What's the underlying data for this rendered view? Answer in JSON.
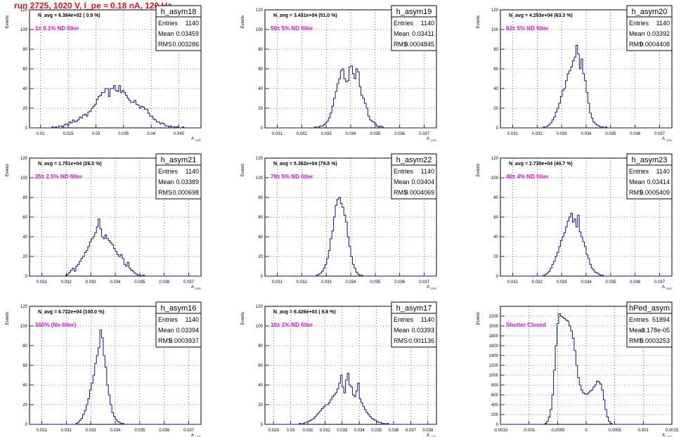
{
  "run_title": "run 2725,  1020 V, I_pe ≈ 0.18 nA, 120 Hz",
  "colors": {
    "run_title": "#e8101a",
    "annotation": "#e010d0",
    "histogram": "#101080",
    "grid": "#000000"
  },
  "stats_labels": {
    "entries": "Entries",
    "mean": "Mean",
    "rms": "RMS"
  },
  "ylabel": "Events",
  "xlabel": "A",
  "xlabel_sub": "LED",
  "chart_data": [
    {
      "type": "bar",
      "name": "h_asym18",
      "stats": {
        "entries": "1140",
        "mean": "0.03459",
        "rms": "0.003286"
      },
      "navg": "N_avg = 6.384e+02 ( 0.9 %)",
      "label": "1± 0.1% ND filter",
      "xlim": [
        0.018,
        0.049
      ],
      "ylim": [
        0,
        120
      ],
      "xticks": [
        "0.02",
        "0.025",
        "0.03",
        "0.035",
        "0.04",
        "0.045"
      ],
      "yticks": [
        "0",
        "20",
        "40",
        "60",
        "80",
        "100",
        "120"
      ],
      "grid": true,
      "peak": 43,
      "values": [
        0,
        0,
        0,
        0,
        0,
        0,
        0,
        0,
        0,
        0,
        0,
        0,
        0,
        1,
        0,
        1,
        0,
        2,
        2,
        1,
        3,
        4,
        3,
        6,
        5,
        8,
        6,
        7,
        8,
        11,
        10,
        13,
        14,
        12,
        16,
        17,
        20,
        22,
        24,
        29,
        32,
        33,
        36,
        36,
        40,
        40,
        32,
        40,
        40,
        43,
        38,
        37,
        43,
        36,
        38,
        36,
        33,
        30,
        28,
        26,
        26,
        28,
        24,
        23,
        20,
        22,
        21,
        19,
        19,
        15,
        12,
        12,
        9,
        8,
        6,
        6,
        4,
        5,
        4,
        2,
        2,
        1,
        2,
        0,
        1,
        1,
        1,
        0,
        0,
        1,
        0,
        0,
        0,
        0,
        0,
        0,
        0,
        0,
        0,
        0
      ]
    },
    {
      "type": "bar",
      "name": "h_asym19",
      "stats": {
        "entries": "1140",
        "mean": "0.03411",
        "rms": "0.0004845"
      },
      "navg": "N_avg = 3.431e+04 (51.0 %)",
      "label": "50± 5% ND filter",
      "xlim": [
        0.0305,
        0.0375
      ],
      "ylim": [
        0,
        120
      ],
      "xticks": [
        "0.031",
        "0.032",
        "0.033",
        "0.034",
        "0.035",
        "0.036",
        "0.037"
      ],
      "yticks": [
        "0",
        "20",
        "40",
        "60",
        "80",
        "100",
        "120"
      ],
      "grid": true,
      "peak": 63,
      "values": [
        0,
        0,
        0,
        0,
        0,
        0,
        0,
        0,
        0,
        0,
        0,
        0,
        0,
        0,
        0,
        0,
        0,
        0,
        0,
        0,
        0,
        0,
        0,
        0,
        0,
        0,
        0,
        0,
        0,
        1,
        0,
        1,
        2,
        2,
        3,
        5,
        7,
        10,
        15,
        22,
        30,
        37,
        45,
        50,
        58,
        60,
        50,
        47,
        48,
        62,
        63,
        55,
        50,
        60,
        57,
        42,
        33,
        30,
        25,
        20,
        12,
        8,
        7,
        6,
        4,
        2,
        1,
        2,
        1,
        0,
        0,
        0,
        0,
        0,
        0,
        0,
        0,
        0,
        0,
        0,
        0,
        0,
        0,
        0,
        0,
        0,
        0,
        0,
        0,
        0,
        0,
        0,
        0,
        0,
        0,
        0,
        0,
        0,
        0,
        0
      ]
    },
    {
      "type": "bar",
      "name": "h_asym20",
      "stats": {
        "entries": "1140",
        "mean": "0.03392",
        "rms": "0.0004408"
      },
      "navg": "N_avg = 4.253e+04 (63.3 %)",
      "label": "63± 5% ND filter",
      "xlim": [
        0.0305,
        0.0375
      ],
      "ylim": [
        0,
        120
      ],
      "xticks": [
        "0.031",
        "0.032",
        "0.033",
        "0.034",
        "0.035",
        "0.036",
        "0.037"
      ],
      "yticks": [
        "0",
        "20",
        "40",
        "60",
        "80",
        "100",
        "120"
      ],
      "grid": true,
      "peak": 84,
      "values": [
        0,
        0,
        0,
        0,
        0,
        0,
        0,
        0,
        0,
        0,
        0,
        0,
        0,
        0,
        0,
        0,
        0,
        0,
        0,
        0,
        0,
        0,
        0,
        0,
        0,
        1,
        0,
        2,
        3,
        5,
        8,
        11,
        16,
        20,
        25,
        32,
        38,
        40,
        48,
        55,
        58,
        62,
        68,
        72,
        84,
        75,
        60,
        70,
        55,
        48,
        36,
        25,
        15,
        10,
        6,
        4,
        3,
        2,
        1,
        1,
        0,
        1,
        0,
        0,
        0,
        0,
        0,
        0,
        0,
        0,
        0,
        0,
        0,
        0,
        0,
        0,
        0,
        0,
        0,
        0,
        0,
        0,
        0,
        0,
        0,
        0,
        0,
        0,
        0,
        0,
        0,
        0,
        0,
        0,
        0,
        0,
        0,
        0,
        0,
        0
      ]
    },
    {
      "type": "bar",
      "name": "h_asym21",
      "stats": {
        "entries": "1140",
        "mean": "0.03389",
        "rms": "0.000698"
      },
      "navg": "N_avg = 1.751e+04 (26.0 %)",
      "label": "25± 2.5% ND filter",
      "xlim": [
        0.0305,
        0.0375
      ],
      "ylim": [
        0,
        120
      ],
      "xticks": [
        "0.031",
        "0.032",
        "0.033",
        "0.034",
        "0.035",
        "0.036",
        "0.037"
      ],
      "yticks": [
        "0",
        "20",
        "40",
        "60",
        "80",
        "100",
        "120"
      ],
      "grid": true,
      "peak": 58,
      "values": [
        0,
        0,
        0,
        0,
        0,
        0,
        0,
        0,
        0,
        0,
        0,
        0,
        0,
        0,
        0,
        0,
        0,
        0,
        0,
        0,
        0,
        1,
        2,
        4,
        6,
        8,
        5,
        10,
        12,
        15,
        18,
        20,
        24,
        26,
        30,
        35,
        38,
        40,
        44,
        50,
        58,
        48,
        40,
        38,
        42,
        38,
        36,
        34,
        32,
        28,
        25,
        22,
        20,
        22,
        18,
        12,
        10,
        14,
        8,
        6,
        5,
        3,
        2,
        1,
        1,
        0,
        1,
        0,
        0,
        0,
        0,
        0,
        0,
        0,
        0,
        0,
        0,
        0,
        0,
        0,
        0,
        0,
        0,
        0,
        0,
        0,
        0,
        0,
        0,
        0,
        0,
        0,
        0,
        0,
        0,
        0,
        0,
        0,
        0,
        0
      ]
    },
    {
      "type": "bar",
      "name": "h_asym22",
      "stats": {
        "entries": "1140",
        "mean": "0.03404",
        "rms": "0.0004069"
      },
      "navg": "N_avg = 5.362e+04 (79.8 %)",
      "label": "79± 5% ND filter",
      "xlim": [
        0.0305,
        0.0375
      ],
      "ylim": [
        0,
        120
      ],
      "xticks": [
        "0.031",
        "0.032",
        "0.033",
        "0.034",
        "0.035",
        "0.036",
        "0.037"
      ],
      "yticks": [
        "0",
        "20",
        "40",
        "60",
        "80",
        "100",
        "120"
      ],
      "grid": true,
      "peak": 80,
      "values": [
        0,
        0,
        0,
        0,
        0,
        0,
        0,
        0,
        0,
        0,
        0,
        0,
        0,
        0,
        0,
        0,
        0,
        0,
        0,
        0,
        0,
        0,
        0,
        0,
        0,
        0,
        0,
        0,
        0,
        0,
        1,
        2,
        3,
        5,
        8,
        12,
        18,
        26,
        38,
        46,
        60,
        72,
        78,
        80,
        74,
        70,
        62,
        55,
        40,
        30,
        20,
        12,
        8,
        4,
        2,
        1,
        1,
        0,
        0,
        0,
        0,
        0,
        0,
        0,
        0,
        0,
        0,
        0,
        0,
        0,
        0,
        0,
        0,
        0,
        0,
        0,
        0,
        0,
        0,
        0,
        0,
        0,
        0,
        0,
        0,
        0,
        0,
        0,
        0,
        0,
        0,
        0,
        0,
        0,
        0,
        0,
        0,
        0,
        0,
        0
      ]
    },
    {
      "type": "bar",
      "name": "h_asym23",
      "stats": {
        "entries": "1140",
        "mean": "0.03414",
        "rms": "0.0005409"
      },
      "navg": "N_avg = 2.735e+04 (40.7 %)",
      "label": "40± 4% ND filter",
      "xlim": [
        0.0305,
        0.0375
      ],
      "ylim": [
        0,
        120
      ],
      "xticks": [
        "0.031",
        "0.032",
        "0.033",
        "0.034",
        "0.035",
        "0.036",
        "0.037"
      ],
      "yticks": [
        "0",
        "20",
        "40",
        "60",
        "80",
        "100",
        "120"
      ],
      "grid": true,
      "peak": 64,
      "values": [
        0,
        0,
        0,
        0,
        0,
        0,
        0,
        0,
        0,
        0,
        0,
        0,
        0,
        0,
        0,
        0,
        0,
        0,
        0,
        0,
        0,
        0,
        0,
        0,
        0,
        1,
        2,
        3,
        5,
        8,
        12,
        15,
        20,
        24,
        30,
        36,
        40,
        44,
        50,
        56,
        60,
        64,
        55,
        58,
        50,
        62,
        45,
        40,
        35,
        30,
        22,
        18,
        12,
        8,
        6,
        4,
        3,
        2,
        1,
        1,
        0,
        0,
        0,
        0,
        0,
        0,
        0,
        0,
        0,
        0,
        0,
        0,
        0,
        0,
        0,
        0,
        0,
        0,
        0,
        0,
        0,
        0,
        0,
        0,
        0,
        0,
        0,
        0,
        0,
        0,
        0,
        0,
        0,
        0,
        0,
        0,
        0,
        0,
        0,
        0
      ]
    },
    {
      "type": "bar",
      "name": "h_asym16",
      "stats": {
        "entries": "1140",
        "mean": "0.03394",
        "rms": "0.0003937"
      },
      "navg": "N_avg = 6.722e+04 (100.0 %)",
      "label": "100% (No filter)",
      "xlim": [
        0.0305,
        0.0375
      ],
      "ylim": [
        0,
        120
      ],
      "xticks": [
        "0.031",
        "0.032",
        "0.033",
        "0.034",
        "0.035",
        "0.036",
        "0.037"
      ],
      "yticks": [
        "0",
        "20",
        "40",
        "60",
        "80",
        "100",
        "120"
      ],
      "grid": true,
      "peak": 96,
      "values": [
        0,
        0,
        0,
        0,
        0,
        0,
        0,
        0,
        0,
        0,
        0,
        0,
        0,
        0,
        0,
        0,
        0,
        0,
        0,
        0,
        0,
        0,
        0,
        0,
        0,
        0,
        0,
        1,
        2,
        4,
        6,
        10,
        14,
        20,
        26,
        35,
        42,
        50,
        62,
        70,
        78,
        96,
        88,
        70,
        58,
        40,
        30,
        20,
        12,
        8,
        5,
        3,
        2,
        1,
        1,
        0,
        0,
        0,
        0,
        0,
        0,
        0,
        0,
        0,
        0,
        0,
        0,
        0,
        0,
        0,
        0,
        0,
        0,
        0,
        0,
        0,
        0,
        0,
        0,
        0,
        0,
        0,
        0,
        0,
        0,
        0,
        0,
        0,
        0,
        0,
        0,
        0,
        0,
        0,
        0,
        0,
        0,
        0,
        0,
        0
      ]
    },
    {
      "type": "bar",
      "name": "h_asym17",
      "stats": {
        "entries": "1140",
        "mean": "0.03393",
        "rms": "0.001136"
      },
      "navg": "N_avg = 6.426e+03 ( 9.6 %)",
      "label": "10± 1% ND filter",
      "xlim": [
        0.0285,
        0.0385
      ],
      "ylim": [
        0,
        120
      ],
      "xticks": [
        "0.029",
        "0.03",
        "0.031",
        "0.032",
        "0.033",
        "0.034",
        "0.035",
        "0.036",
        "0.037",
        "0.038"
      ],
      "yticks": [
        "0",
        "20",
        "40",
        "60",
        "80",
        "100",
        "120"
      ],
      "grid": true,
      "peak": 52,
      "values": [
        0,
        0,
        0,
        0,
        0,
        0,
        0,
        0,
        0,
        0,
        0,
        0,
        0,
        0,
        0,
        0,
        0,
        0,
        0,
        0,
        1,
        0,
        1,
        2,
        2,
        3,
        4,
        5,
        6,
        8,
        10,
        12,
        14,
        16,
        18,
        20,
        20,
        22,
        25,
        28,
        30,
        32,
        36,
        42,
        50,
        38,
        32,
        45,
        52,
        40,
        38,
        30,
        28,
        34,
        42,
        26,
        22,
        18,
        15,
        12,
        10,
        8,
        6,
        5,
        4,
        3,
        2,
        2,
        1,
        1,
        0,
        1,
        0,
        0,
        0,
        0,
        0,
        0,
        0,
        0,
        0,
        0,
        0,
        0,
        0,
        0,
        0,
        0,
        0,
        0,
        0,
        0,
        0,
        0,
        0,
        0,
        0,
        0,
        0,
        0
      ]
    },
    {
      "type": "bar",
      "name": "hPed_asym",
      "stats": {
        "entries": "51894",
        "mean": "-3.178e-05",
        "rms": "0.0003253"
      },
      "navg": "",
      "label": "Shutter Closed",
      "xlim": [
        -0.0015,
        0.0015
      ],
      "ylim": [
        0,
        2400
      ],
      "xticks": [
        "-0.0015",
        "-0.001",
        "-0.0005",
        "0",
        "0.0005",
        "0.001",
        "0.0015"
      ],
      "yticks": [
        "0",
        "200",
        "400",
        "600",
        "800",
        "1000",
        "1200",
        "1400",
        "1600",
        "1800",
        "2000",
        "2200"
      ],
      "grid": true,
      "peak": 2250,
      "values": [
        0,
        0,
        0,
        0,
        0,
        0,
        0,
        0,
        0,
        0,
        0,
        0,
        0,
        0,
        0,
        0,
        0,
        0,
        0,
        0,
        0,
        0,
        0,
        0,
        0,
        0,
        20,
        60,
        150,
        300,
        600,
        1100,
        1600,
        2050,
        2250,
        2200,
        2180,
        2150,
        2120,
        2100,
        2000,
        1900,
        1750,
        1500,
        1200,
        950,
        800,
        700,
        640,
        620,
        610,
        640,
        680,
        700,
        760,
        800,
        880,
        860,
        820,
        700,
        500,
        300,
        150,
        60,
        20,
        0,
        0,
        0,
        0,
        0,
        0,
        0,
        0,
        0,
        0,
        0,
        0,
        0,
        0,
        0,
        0,
        0,
        0,
        0,
        0,
        0,
        0,
        0,
        0,
        0,
        0,
        0,
        0,
        0,
        0,
        0,
        0,
        0,
        0,
        0
      ]
    }
  ]
}
